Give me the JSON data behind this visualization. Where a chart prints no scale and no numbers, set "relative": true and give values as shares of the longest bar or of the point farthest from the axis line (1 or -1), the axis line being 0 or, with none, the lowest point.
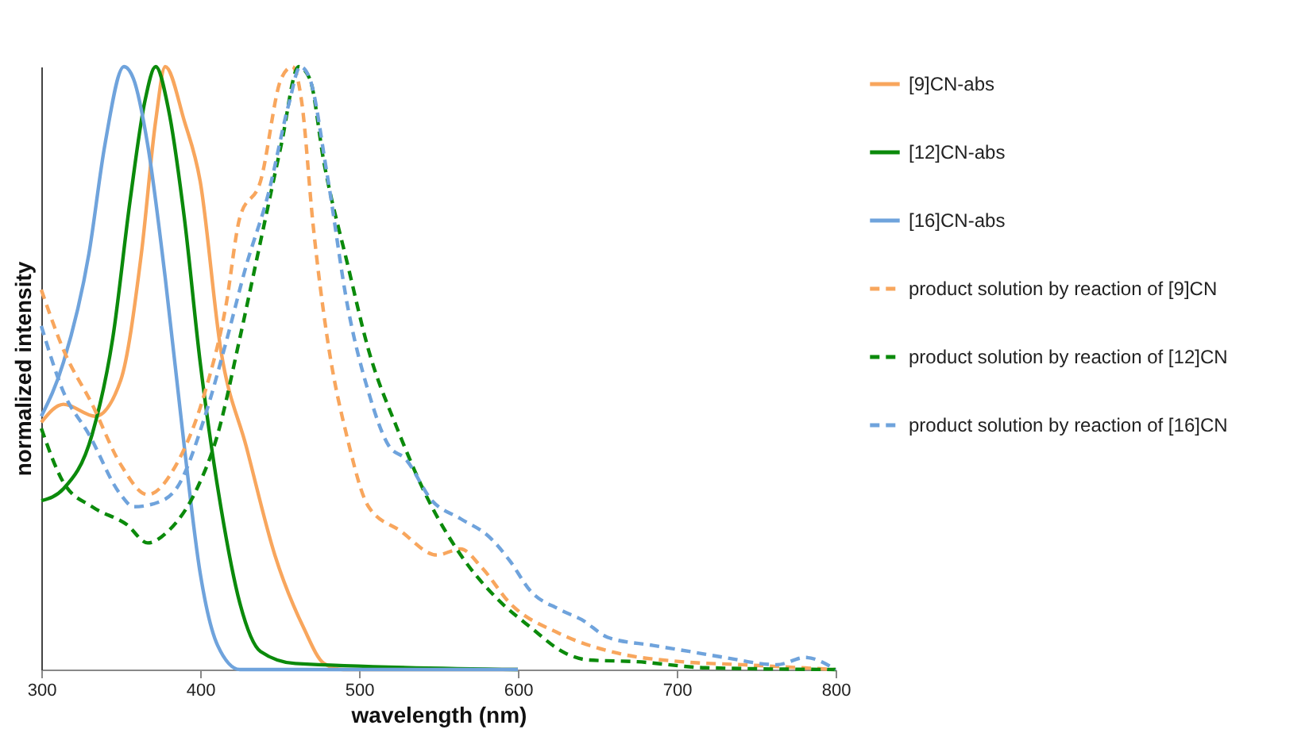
{
  "chart_data": {
    "type": "line",
    "xlabel": "wavelength (nm)",
    "ylabel": "normalized intensity",
    "relative": true,
    "xlim": [
      300,
      800
    ],
    "xticks": [
      300,
      400,
      500,
      600,
      700,
      800
    ],
    "grid": false,
    "legend": "right",
    "series": [
      {
        "name": "[9]CN-abs",
        "color": "#f8a65d",
        "line_style": "solid",
        "x": [
          300,
          314,
          334,
          350,
          363,
          372,
          378,
          390,
          400,
          413,
          429,
          447,
          465,
          478,
          490,
          600
        ],
        "values": [
          0.41,
          0.44,
          0.42,
          0.48,
          0.69,
          0.91,
          1,
          0.91,
          0.81,
          0.53,
          0.37,
          0.19,
          0.07,
          0.01,
          0,
          0
        ]
      },
      {
        "name": "[12]CN-abs",
        "color": "#0b8a0b",
        "line_style": "solid",
        "x": [
          300,
          314,
          332,
          345,
          356,
          365,
          372,
          380,
          390,
          400,
          413,
          425,
          438,
          460,
          600
        ],
        "values": [
          0.28,
          0.3,
          0.39,
          0.55,
          0.78,
          0.94,
          1,
          0.93,
          0.75,
          0.51,
          0.27,
          0.11,
          0.03,
          0.01,
          0
        ]
      },
      {
        "name": "[16]CN-abs",
        "color": "#6fa3dc",
        "line_style": "solid",
        "x": [
          300,
          314,
          330,
          340,
          352,
          358,
          367,
          378,
          390,
          400,
          411,
          425,
          600
        ],
        "values": [
          0.42,
          0.51,
          0.69,
          0.87,
          1,
          0.98,
          0.87,
          0.65,
          0.37,
          0.16,
          0.04,
          0,
          0
        ]
      },
      {
        "name": "product solution by reaction of [9]CN",
        "color": "#f8a65d",
        "line_style": "dashed",
        "x": [
          300,
          314,
          332,
          350,
          367,
          385,
          403,
          416,
          425,
          438,
          451,
          458,
          464,
          471,
          480,
          493,
          506,
          526,
          549,
          564,
          577,
          595,
          626,
          663,
          703,
          741,
          800
        ],
        "values": [
          0.63,
          0.53,
          0.44,
          0.34,
          0.29,
          0.34,
          0.46,
          0.6,
          0.75,
          0.81,
          0.98,
          1,
          0.94,
          0.74,
          0.55,
          0.38,
          0.27,
          0.23,
          0.19,
          0.2,
          0.17,
          0.11,
          0.06,
          0.027,
          0.013,
          0.008,
          0
        ]
      },
      {
        "name": "product solution by reaction of [12]CN",
        "color": "#0b8a0b",
        "line_style": "dashed",
        "x": [
          300,
          314,
          332,
          354,
          367,
          380,
          398,
          411,
          425,
          438,
          451,
          462,
          469,
          478,
          493,
          506,
          524,
          542,
          564,
          586,
          608,
          630,
          644,
          675,
          718,
          800
        ],
        "values": [
          0.4,
          0.31,
          0.27,
          0.24,
          0.21,
          0.23,
          0.3,
          0.39,
          0.55,
          0.71,
          0.87,
          1,
          0.98,
          0.84,
          0.67,
          0.53,
          0.4,
          0.29,
          0.19,
          0.12,
          0.07,
          0.027,
          0.016,
          0.013,
          0.003,
          0
        ]
      },
      {
        "name": "product solution by reaction of [16]CN",
        "color": "#6fa3dc",
        "line_style": "dashed",
        "x": [
          300,
          314,
          330,
          350,
          358,
          376,
          385,
          403,
          416,
          429,
          443,
          456,
          463,
          469,
          480,
          493,
          506,
          519,
          529,
          546,
          564,
          582,
          595,
          608,
          626,
          640,
          657,
          685,
          708,
          730,
          763,
          781,
          800
        ],
        "values": [
          0.57,
          0.46,
          0.39,
          0.29,
          0.27,
          0.28,
          0.3,
          0.42,
          0.54,
          0.67,
          0.79,
          0.94,
          1,
          0.98,
          0.82,
          0.6,
          0.46,
          0.37,
          0.35,
          0.28,
          0.25,
          0.22,
          0.18,
          0.13,
          0.1,
          0.083,
          0.053,
          0.04,
          0.03,
          0.02,
          0.008,
          0.02,
          0
        ]
      }
    ]
  }
}
